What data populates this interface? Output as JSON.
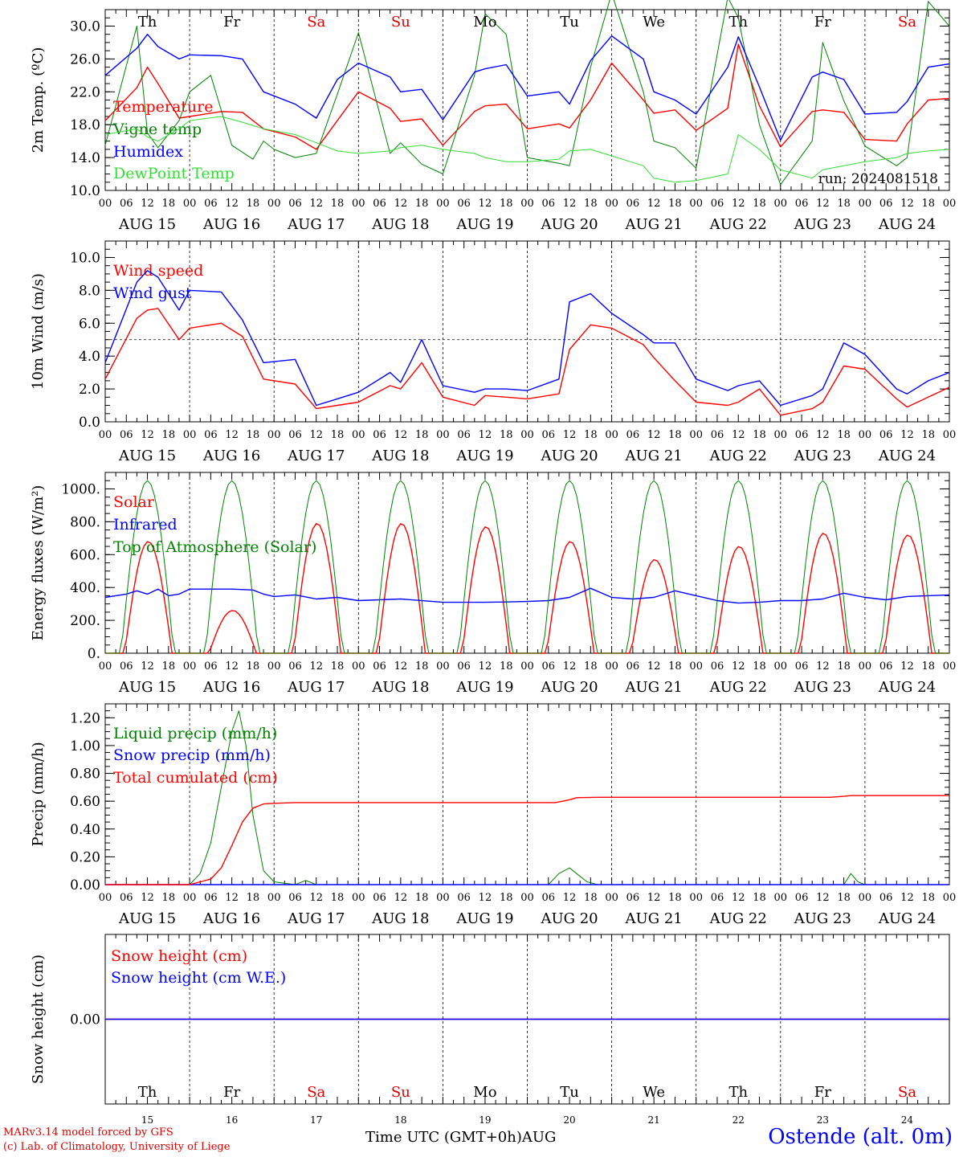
{
  "run_label": "run: 2024081518",
  "x_title": "Time UTC (GMT+0h)",
  "x_month": "AUG",
  "location": "Ostende (alt. 0m)",
  "credits": [
    "MARv3.14 model forced by GFS",
    "(c) Lab. of Climatology, University of Liege"
  ],
  "days": [
    {
      "name": "Th",
      "date": "AUG 15",
      "num": "15",
      "weekend": false
    },
    {
      "name": "Fr",
      "date": "AUG 16",
      "num": "16",
      "weekend": false
    },
    {
      "name": "Sa",
      "date": "AUG 17",
      "num": "17",
      "weekend": true
    },
    {
      "name": "Su",
      "date": "AUG 18",
      "num": "18",
      "weekend": true
    },
    {
      "name": "Mo",
      "date": "AUG 19",
      "num": "19",
      "weekend": false
    },
    {
      "name": "Tu",
      "date": "AUG 20",
      "num": "20",
      "weekend": false
    },
    {
      "name": "We",
      "date": "AUG 21",
      "num": "21",
      "weekend": false
    },
    {
      "name": "Th",
      "date": "AUG 22",
      "num": "22",
      "weekend": false
    },
    {
      "name": "Fr",
      "date": "AUG 23",
      "num": "23",
      "weekend": false
    },
    {
      "name": "Sa",
      "date": "AUG 24",
      "num": "24",
      "weekend": true
    }
  ],
  "hour_labels": [
    "00",
    "06",
    "12",
    "18"
  ],
  "final_hour_label": "00",
  "colors": {
    "weekday": "#000000",
    "weekend": "#e00000"
  },
  "chart_data": [
    {
      "type": "line",
      "ylabel": "2m Temp. (ºC)",
      "ylim": [
        10,
        32
      ],
      "yticks": [
        "10.0",
        "14.0",
        "18.0",
        "22.0",
        "26.0",
        "30.0"
      ],
      "ytick_values": [
        10,
        14,
        18,
        22,
        26,
        30
      ],
      "show_day_names": true,
      "series": [
        {
          "name": "Temperature",
          "color": "#ff0000",
          "x": [
            0,
            9,
            12,
            15,
            21,
            24,
            33,
            39,
            45,
            54,
            60,
            66,
            72,
            81,
            84,
            90,
            96,
            105,
            108,
            114,
            120,
            129,
            132,
            138,
            144,
            153,
            156,
            162,
            168,
            177,
            180,
            186,
            192,
            201,
            204,
            210,
            216,
            225,
            228,
            234,
            240
          ],
          "values": [
            18.5,
            22.5,
            25,
            23,
            18.8,
            19,
            19.6,
            19.5,
            17.5,
            16.5,
            15,
            18.5,
            22,
            20,
            18.4,
            18.7,
            15.5,
            19.6,
            20.3,
            20.5,
            17.5,
            18.1,
            17.6,
            21,
            25.5,
            21,
            19.4,
            19.8,
            17.3,
            20,
            27.8,
            20.3,
            15.3,
            19.6,
            19.8,
            19.5,
            16.2,
            16,
            18.1,
            21,
            21.2
          ]
        },
        {
          "name": "Vigne temp",
          "color": "#008000",
          "x": [
            0,
            9,
            12,
            15,
            21,
            24,
            30,
            36,
            42,
            45,
            48,
            54,
            60,
            66,
            72,
            81,
            84,
            90,
            96,
            105,
            108,
            114,
            120,
            129,
            132,
            138,
            144,
            153,
            156,
            162,
            168,
            177,
            180,
            186,
            192,
            201,
            204,
            210,
            216,
            225,
            228,
            234,
            240
          ],
          "values": [
            15.5,
            30,
            17,
            15.2,
            18.5,
            22,
            24,
            15.5,
            13.8,
            16,
            15,
            14,
            14.5,
            21.7,
            29.2,
            14.5,
            15.8,
            13.2,
            12,
            24,
            31.5,
            29,
            14,
            13.3,
            13,
            25,
            34,
            22,
            16,
            15.2,
            12.7,
            33.5,
            31,
            18,
            10.7,
            16,
            28,
            20.9,
            15.4,
            13,
            14,
            33,
            30
          ]
        },
        {
          "name": "Humidex",
          "color": "#0000ff",
          "x": [
            0,
            9,
            12,
            15,
            21,
            24,
            33,
            39,
            45,
            54,
            60,
            66,
            72,
            81,
            84,
            90,
            96,
            105,
            108,
            114,
            120,
            129,
            132,
            138,
            144,
            153,
            156,
            162,
            168,
            177,
            180,
            186,
            192,
            201,
            204,
            210,
            216,
            225,
            228,
            234,
            240
          ],
          "values": [
            24,
            27.3,
            29,
            27.5,
            26,
            26.5,
            26.4,
            26,
            22,
            20.5,
            18.8,
            23.5,
            25.5,
            23.8,
            22,
            22.3,
            18.6,
            24.4,
            24.8,
            25.3,
            21.5,
            22,
            20.5,
            25.8,
            28.8,
            26,
            22,
            21,
            19.3,
            25,
            28.7,
            22.6,
            16.1,
            23.8,
            24.4,
            23.5,
            19.3,
            19.5,
            20.8,
            25,
            25.4
          ]
        },
        {
          "name": "DewPoint Temp",
          "color": "#33dd33",
          "x": [
            0,
            9,
            12,
            15,
            21,
            24,
            33,
            39,
            45,
            54,
            60,
            66,
            72,
            81,
            84,
            90,
            96,
            105,
            108,
            114,
            120,
            129,
            132,
            138,
            144,
            153,
            156,
            162,
            168,
            177,
            180,
            186,
            192,
            201,
            204,
            210,
            216,
            225,
            228,
            234,
            240
          ],
          "values": [
            16.8,
            17.5,
            16.5,
            16,
            17.5,
            18.5,
            19,
            18.3,
            17.5,
            16.8,
            15.8,
            14.8,
            14.5,
            14.8,
            15.2,
            15.5,
            15,
            14.5,
            14,
            13.5,
            13.5,
            13.8,
            14.8,
            15,
            14.2,
            13,
            11.5,
            11,
            11.2,
            12,
            16.8,
            15,
            12.5,
            11.5,
            12.5,
            13,
            13.5,
            14,
            14.5,
            14.8,
            15
          ]
        }
      ]
    },
    {
      "type": "line",
      "ylabel": "10m Wind (m/s)",
      "ylim": [
        0,
        11
      ],
      "yticks": [
        "0.0",
        "2.0",
        "4.0",
        "6.0",
        "8.0",
        "10.0"
      ],
      "ytick_values": [
        0,
        2,
        4,
        6,
        8,
        10
      ],
      "ref_line": 5,
      "series": [
        {
          "name": "Wind speed",
          "color": "#ff0000",
          "x": [
            0,
            9,
            12,
            15,
            21,
            24,
            33,
            39,
            45,
            54,
            60,
            66,
            72,
            81,
            84,
            90,
            96,
            105,
            108,
            114,
            120,
            129,
            132,
            138,
            144,
            153,
            156,
            162,
            168,
            177,
            180,
            186,
            192,
            201,
            204,
            210,
            216,
            225,
            228,
            234,
            240
          ],
          "values": [
            2.6,
            6.3,
            6.8,
            6.9,
            5,
            5.7,
            6,
            5.2,
            2.6,
            2.3,
            0.8,
            1,
            1.2,
            2.2,
            2.0,
            3.6,
            1.5,
            1.0,
            1.6,
            1.5,
            1.4,
            1.7,
            4.4,
            5.9,
            5.7,
            4.7,
            3.9,
            2.5,
            1.2,
            1.0,
            1.2,
            2.0,
            0.4,
            0.8,
            1.2,
            3.4,
            3.2,
            1.4,
            0.9,
            1.5,
            2.1
          ]
        },
        {
          "name": "Wind gust",
          "color": "#0000ff",
          "x": [
            0,
            9,
            12,
            15,
            21,
            24,
            33,
            39,
            45,
            54,
            60,
            66,
            72,
            81,
            84,
            90,
            96,
            105,
            108,
            114,
            120,
            129,
            132,
            138,
            144,
            153,
            156,
            162,
            168,
            177,
            180,
            186,
            192,
            201,
            204,
            210,
            216,
            225,
            228,
            234,
            240
          ],
          "values": [
            3.6,
            8.5,
            9.2,
            8.8,
            6.8,
            8,
            7.9,
            6.2,
            3.6,
            3.8,
            1.0,
            1.4,
            1.8,
            3.0,
            2.4,
            5.0,
            2.2,
            1.8,
            2.0,
            2.0,
            1.9,
            2.6,
            7.3,
            7.8,
            6.6,
            5.3,
            4.8,
            4.8,
            2.6,
            1.9,
            2.2,
            2.5,
            1.0,
            1.6,
            2.0,
            4.8,
            4.1,
            2.0,
            1.7,
            2.5,
            3.0
          ]
        }
      ]
    },
    {
      "type": "line",
      "ylabel": "Energy fluxes (W/m²)",
      "ylim": [
        0,
        1100
      ],
      "yticks": [
        "0.",
        "200.",
        "400.",
        "600.",
        "800.",
        "1000."
      ],
      "ytick_values": [
        0,
        200,
        400,
        600,
        800,
        1000
      ],
      "series": [
        {
          "name": "Solar",
          "color": "#ff0000",
          "peaks": [
            680,
            260,
            790,
            790,
            770,
            680,
            570,
            650,
            730,
            720
          ]
        },
        {
          "name": "Infrared",
          "color": "#0000ff",
          "x": [
            0,
            6,
            9,
            12,
            15,
            18,
            21,
            24,
            36,
            42,
            45,
            48,
            54,
            60,
            66,
            72,
            78,
            84,
            96,
            108,
            114,
            120,
            126,
            132,
            138,
            144,
            150,
            156,
            162,
            168,
            174,
            180,
            186,
            192,
            198,
            204,
            210,
            216,
            222,
            228,
            234,
            240
          ],
          "values": [
            340,
            360,
            380,
            360,
            390,
            350,
            360,
            390,
            390,
            385,
            360,
            345,
            355,
            330,
            340,
            320,
            325,
            330,
            310,
            310,
            312,
            315,
            320,
            340,
            395,
            340,
            330,
            340,
            380,
            350,
            320,
            305,
            310,
            320,
            320,
            330,
            365,
            340,
            325,
            345,
            350,
            355
          ]
        },
        {
          "name": "Top of Atmosphere (Solar)",
          "color": "#008000",
          "peak": 1050
        }
      ]
    },
    {
      "type": "line",
      "ylabel": "Precip (mm/h)",
      "ylim": [
        0,
        1.3
      ],
      "yticks": [
        "0.00",
        "0.20",
        "0.40",
        "0.60",
        "0.80",
        "1.00",
        "1.20"
      ],
      "ytick_values": [
        0,
        0.2,
        0.4,
        0.6,
        0.8,
        1.0,
        1.2
      ],
      "series": [
        {
          "name": "Liquid precip (mm/h)",
          "color": "#008000",
          "x": [
            0,
            24,
            27,
            30,
            33,
            36,
            38,
            40,
            42,
            45,
            48,
            51,
            54,
            57,
            60,
            120,
            126,
            129,
            132,
            134,
            137,
            140,
            192,
            210,
            212,
            214,
            216,
            240
          ],
          "values": [
            0,
            0,
            0.08,
            0.3,
            0.7,
            1.1,
            1.25,
            1.0,
            0.5,
            0.1,
            0.02,
            0.01,
            0,
            0.03,
            0,
            0,
            0,
            0.08,
            0.12,
            0.08,
            0.02,
            0,
            0,
            0,
            0.08,
            0.02,
            0,
            0
          ]
        },
        {
          "name": "Snow precip (mm/h)",
          "color": "#0000ff",
          "x": [
            0,
            240
          ],
          "values": [
            0,
            0
          ]
        },
        {
          "name": "Total cumulated (cm)",
          "color": "#ff0000",
          "x": [
            0,
            24,
            30,
            33,
            36,
            39,
            42,
            45,
            48,
            54,
            60,
            66,
            120,
            128,
            132,
            134,
            140,
            192,
            206,
            210,
            212,
            240
          ],
          "values": [
            0,
            0,
            0.04,
            0.12,
            0.28,
            0.45,
            0.55,
            0.58,
            0.585,
            0.59,
            0.59,
            0.59,
            0.59,
            0.59,
            0.61,
            0.625,
            0.628,
            0.628,
            0.628,
            0.635,
            0.64,
            0.64
          ]
        }
      ]
    },
    {
      "type": "line",
      "ylabel": "Snow height (cm)",
      "ylim": [
        -1,
        1
      ],
      "yticks": [
        "0.00"
      ],
      "ytick_values": [
        0
      ],
      "series": [
        {
          "name": "Snow height (cm)",
          "color": "#ff0000",
          "x": [
            0,
            240
          ],
          "values": [
            0,
            0
          ]
        },
        {
          "name": "Snow height (cm W.E.)",
          "color": "#0000ff",
          "x": [
            0,
            240
          ],
          "values": [
            0,
            0
          ]
        }
      ]
    }
  ]
}
